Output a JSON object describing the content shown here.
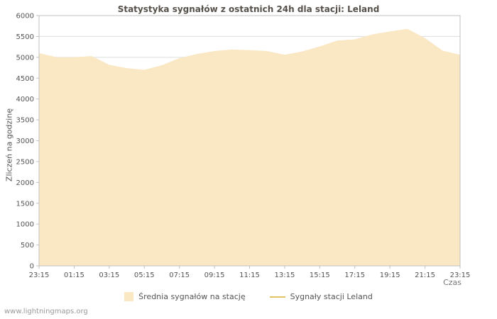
{
  "footer": "www.lightningmaps.org",
  "chart_data": {
    "type": "area",
    "title": "Statystyka sygnałów z ostatnich 24h dla stacji: Leland",
    "xlabel": "Czas",
    "ylabel": "Zliczeń na godzinę",
    "ylim": [
      0,
      6000
    ],
    "ytick_step": 500,
    "grid": true,
    "legend_position": "bottom",
    "colors": {
      "area_fill": "#FAE7C4",
      "line": "#E3C465",
      "grid": "#DDDDDD",
      "axis_border": "#C0C0C0",
      "tick_text": "#555555"
    },
    "x_tick_labels": [
      "23:15",
      "01:15",
      "03:15",
      "05:15",
      "07:15",
      "09:15",
      "11:15",
      "13:15",
      "15:15",
      "17:15",
      "19:15",
      "21:15",
      "23:15"
    ],
    "x": [
      "23:15",
      "00:15",
      "01:15",
      "02:15",
      "03:15",
      "04:15",
      "05:15",
      "06:15",
      "07:15",
      "08:15",
      "09:15",
      "10:15",
      "11:15",
      "12:15",
      "13:15",
      "14:15",
      "15:15",
      "16:15",
      "17:15",
      "18:15",
      "19:15",
      "20:15",
      "21:15",
      "22:15",
      "23:15"
    ],
    "series": [
      {
        "name": "Średnia sygnałów na stację",
        "type": "area",
        "color": "#FAE7C4",
        "values": [
          5100,
          5000,
          5000,
          5030,
          4820,
          4740,
          4700,
          4810,
          4980,
          5080,
          5150,
          5190,
          5170,
          5150,
          5060,
          5140,
          5260,
          5400,
          5430,
          5550,
          5620,
          5680,
          5460,
          5160,
          5060
        ]
      },
      {
        "name": "Sygnały stacji Leland",
        "type": "line",
        "color": "#E3C465",
        "values": []
      }
    ]
  }
}
